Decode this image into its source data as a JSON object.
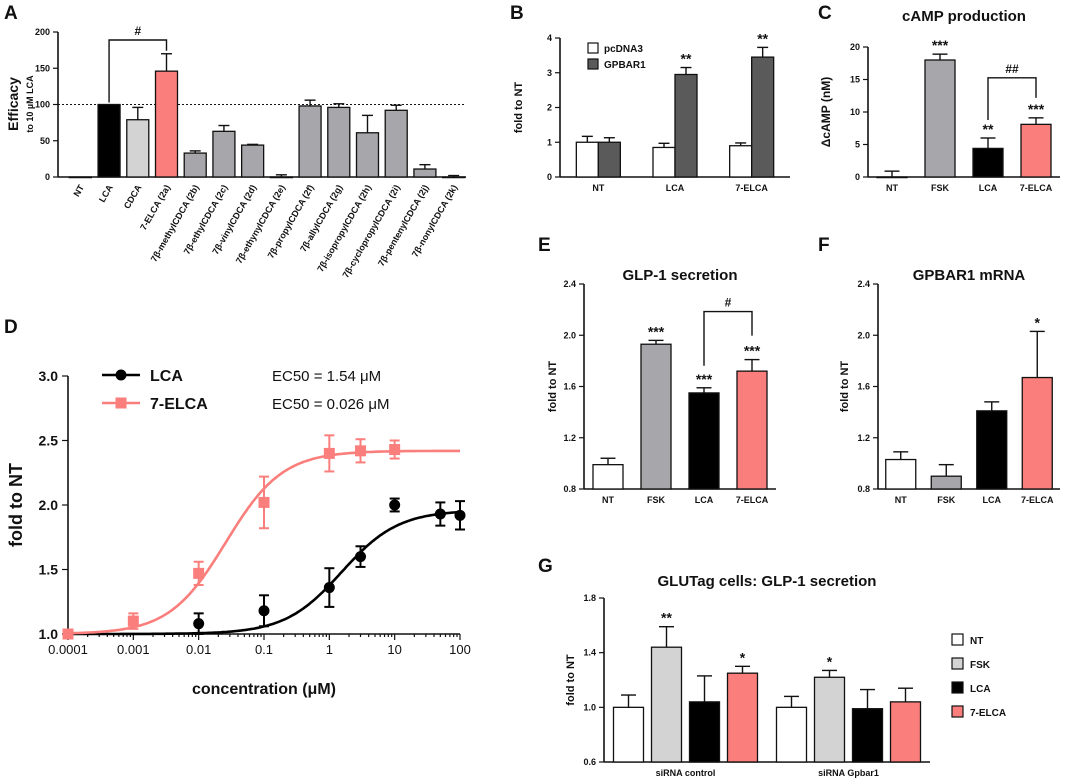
{
  "chart_data": [
    {
      "panel": "A",
      "type": "bar",
      "title": "",
      "ylabel": "Efficacy",
      "ylabel_sub": "to 10 µM LCA",
      "ylim": [
        0,
        200
      ],
      "yticks": [
        0,
        50,
        100,
        150,
        200
      ],
      "reference_line": 100,
      "categories": [
        "NT",
        "LCA",
        "CDCA",
        "7-ELCA (2a)",
        "7β-methylCDCA (2b)",
        "7β-ethylCDCA (2c)",
        "7β-vinylCDCA (2d)",
        "7β-ethynylCDCA (2e)",
        "7β-propylCDCA (2f)",
        "7β-allylCDCA (2g)",
        "7β-isopropylCDCA (2h)",
        "7β-cyclopropylCDCA (2i)",
        "7β-pentenylCDCA (2j)",
        "7β-nonylCDCA (2k)"
      ],
      "values": [
        0,
        100,
        79,
        146,
        33,
        63,
        44,
        0,
        98,
        96,
        61,
        92,
        11,
        0
      ],
      "errors": [
        0,
        0,
        17,
        24,
        3,
        8,
        1,
        3,
        8,
        5,
        24,
        7,
        6,
        2
      ],
      "colors": [
        "#ffffff",
        "#000000",
        "#d3d3d3",
        "#fa7f7c",
        "#a7a7ab",
        "#a7a7ab",
        "#a7a7ab",
        "#a7a7ab",
        "#a7a7ab",
        "#a7a7ab",
        "#a7a7ab",
        "#a7a7ab",
        "#a7a7ab",
        "#a7a7ab"
      ],
      "annotations": [
        {
          "type": "bracket",
          "from": 1,
          "to": 3,
          "text": "#"
        }
      ]
    },
    {
      "panel": "B",
      "type": "bar",
      "title": "",
      "ylabel": "fold to NT",
      "ylim": [
        0,
        4
      ],
      "yticks": [
        0,
        1,
        2,
        3,
        4
      ],
      "categories": [
        "NT",
        "LCA",
        "7-ELCA"
      ],
      "series": [
        {
          "name": "pcDNA3",
          "color": "#ffffff",
          "values": [
            1.0,
            0.85,
            0.9
          ],
          "errors": [
            0.17,
            0.12,
            0.08
          ]
        },
        {
          "name": "GPBAR1",
          "color": "#5a5a5a",
          "values": [
            1.0,
            2.95,
            3.45
          ],
          "errors": [
            0.13,
            0.2,
            0.28
          ]
        }
      ],
      "legend_position": "top-left",
      "annotations": [
        {
          "series": 1,
          "index": 1,
          "text": "**"
        },
        {
          "series": 1,
          "index": 2,
          "text": "**"
        }
      ]
    },
    {
      "panel": "C",
      "type": "bar",
      "title": "cAMP production",
      "ylabel": "ΔcAMP (nM)",
      "ylim": [
        0,
        20
      ],
      "yticks": [
        0,
        5,
        10,
        15,
        20
      ],
      "categories": [
        "NT",
        "FSK",
        "LCA",
        "7-ELCA"
      ],
      "values": [
        0,
        18.0,
        4.4,
        8.1
      ],
      "errors": [
        0.9,
        0.9,
        1.6,
        1.0
      ],
      "colors": [
        "#ffffff",
        "#a7a7ab",
        "#000000",
        "#fa7f7c"
      ],
      "annotations": [
        {
          "index": 1,
          "text": "***"
        },
        {
          "index": 2,
          "text": "**"
        },
        {
          "index": 3,
          "text": "***"
        },
        {
          "type": "bracket",
          "from": 2,
          "to": 3,
          "text": "##"
        }
      ]
    },
    {
      "panel": "D",
      "type": "scatter",
      "xscale": "log",
      "xlabel": "concentration (μM)",
      "ylabel": "fold to NT",
      "xlim": [
        0.0001,
        100
      ],
      "ylim": [
        1.0,
        3.0
      ],
      "xticks": [
        "0.0001",
        "0.001",
        "0.01",
        "0.1",
        "1",
        "10",
        "100"
      ],
      "yticks": [
        "1.0",
        "1.5",
        "2.0",
        "2.5",
        "3.0"
      ],
      "series": [
        {
          "name": "LCA",
          "color": "#000000",
          "marker": "circle",
          "ec50": "EC50 = 1.54 μM",
          "ec50_value": 1.54,
          "fit_top": 1.96,
          "x": [
            0.0001,
            0.01,
            0.1,
            1,
            3,
            10,
            50,
            100
          ],
          "y": [
            1.0,
            1.08,
            1.18,
            1.36,
            1.6,
            2.0,
            1.93,
            1.92
          ],
          "errors": [
            0.0,
            0.08,
            0.12,
            0.15,
            0.08,
            0.05,
            0.09,
            0.11
          ]
        },
        {
          "name": "7-ELCA",
          "color": "#fa7f7c",
          "marker": "square",
          "ec50": "EC50 = 0.026 μM",
          "ec50_value": 0.026,
          "fit_top": 2.42,
          "x": [
            0.0001,
            0.001,
            0.01,
            0.1,
            1,
            3,
            10
          ],
          "y": [
            1.0,
            1.1,
            1.47,
            2.02,
            2.4,
            2.42,
            2.43
          ],
          "errors": [
            0.0,
            0.06,
            0.09,
            0.2,
            0.14,
            0.09,
            0.07
          ]
        }
      ]
    },
    {
      "panel": "E",
      "type": "bar",
      "title": "GLP-1 secretion",
      "ylabel": "fold to NT",
      "ylim": [
        0.8,
        2.4
      ],
      "yticks": [
        "0.8",
        "1.2",
        "1.6",
        "2.0",
        "2.4"
      ],
      "categories": [
        "NT",
        "FSK",
        "LCA",
        "7-ELCA"
      ],
      "values": [
        0.99,
        1.93,
        1.55,
        1.72
      ],
      "errors": [
        0.05,
        0.03,
        0.04,
        0.09
      ],
      "colors": [
        "#ffffff",
        "#a7a7ab",
        "#000000",
        "#fa7f7c"
      ],
      "annotations": [
        {
          "index": 1,
          "text": "***"
        },
        {
          "index": 2,
          "text": "***"
        },
        {
          "index": 3,
          "text": "***"
        },
        {
          "type": "bracket",
          "from": 2,
          "to": 3,
          "text": "#"
        }
      ]
    },
    {
      "panel": "F",
      "type": "bar",
      "title": "GPBAR1 mRNA",
      "ylabel": "fold to NT",
      "ylim": [
        0.8,
        2.4
      ],
      "yticks": [
        "0.8",
        "1.2",
        "1.6",
        "2.0",
        "2.4"
      ],
      "categories": [
        "NT",
        "FSK",
        "LCA",
        "7-ELCA"
      ],
      "values": [
        1.03,
        0.9,
        1.41,
        1.67
      ],
      "errors": [
        0.06,
        0.09,
        0.07,
        0.36
      ],
      "colors": [
        "#ffffff",
        "#a7a7ab",
        "#000000",
        "#fa7f7c"
      ],
      "annotations": [
        {
          "index": 3,
          "text": "*"
        }
      ]
    },
    {
      "panel": "G",
      "type": "bar",
      "title": "GLUTag cells: GLP-1 secretion",
      "ylabel": "fold to NT",
      "ylim": [
        0.6,
        1.8
      ],
      "yticks": [
        "0.6",
        "1.0",
        "1.4",
        "1.8"
      ],
      "categories": [
        "siRNA control",
        "siRNA Gpbar1"
      ],
      "series": [
        {
          "name": "NT",
          "color": "#ffffff",
          "values": [
            1.0,
            1.0
          ],
          "errors": [
            0.09,
            0.08
          ]
        },
        {
          "name": "FSK",
          "color": "#d3d3d3",
          "values": [
            1.44,
            1.22
          ],
          "errors": [
            0.15,
            0.05
          ]
        },
        {
          "name": "LCA",
          "color": "#000000",
          "values": [
            1.04,
            0.99
          ],
          "errors": [
            0.19,
            0.14
          ]
        },
        {
          "name": "7-ELCA",
          "color": "#fa7f7c",
          "values": [
            1.25,
            1.04
          ],
          "errors": [
            0.05,
            0.1
          ]
        }
      ],
      "legend_position": "right",
      "annotations": [
        {
          "series": 1,
          "index": 0,
          "text": "**"
        },
        {
          "series": 3,
          "index": 0,
          "text": "*"
        },
        {
          "series": 1,
          "index": 1,
          "text": "*"
        }
      ]
    }
  ]
}
